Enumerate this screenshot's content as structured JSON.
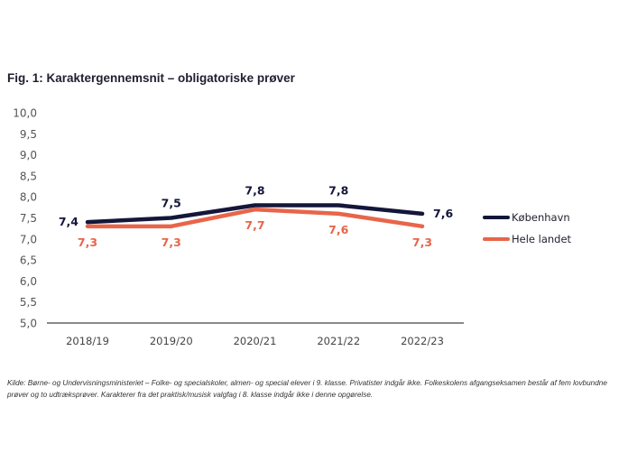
{
  "chart_data": {
    "type": "line",
    "title": "Fig. 1: Karaktergennemsnit – obligatoriske prøver",
    "xlabel": "",
    "ylabel": "",
    "categories": [
      "2018/19",
      "2019/20",
      "2020/21",
      "2021/22",
      "2022/23"
    ],
    "ylim": [
      5.0,
      10.0
    ],
    "yticks": [
      "5,0",
      "5,5",
      "6,0",
      "6,5",
      "7,0",
      "7,5",
      "8,0",
      "8,5",
      "9,0",
      "9,5",
      "10,0"
    ],
    "ytick_values": [
      5.0,
      5.5,
      6.0,
      6.5,
      7.0,
      7.5,
      8.0,
      8.5,
      9.0,
      9.5,
      10.0
    ],
    "grid": false,
    "legend_position": "right",
    "series": [
      {
        "name": "København",
        "color": "#14163a",
        "values": [
          7.4,
          7.5,
          7.8,
          7.8,
          7.6
        ],
        "labels": [
          "7,4",
          "7,5",
          "7,8",
          "7,8",
          "7,6"
        ]
      },
      {
        "name": "Hele landet",
        "color": "#e8654a",
        "values": [
          7.3,
          7.3,
          7.7,
          7.6,
          7.3
        ],
        "labels": [
          "7,3",
          "7,3",
          "7,7",
          "7,6",
          "7,3"
        ]
      }
    ]
  },
  "source_text": "Kilde: Børne- og Undervisningsministeriet – Folke- og specialskoler, almen- og special elever i 9. klasse. Privatister indgår ikke. Folkeskolens afgangseksamen består af fem lovbundne prøver og to udtræksprøver.  Karakterer fra det praktisk/musisk valgfag i 8. klasse indgår ikke i denne opgørelse."
}
